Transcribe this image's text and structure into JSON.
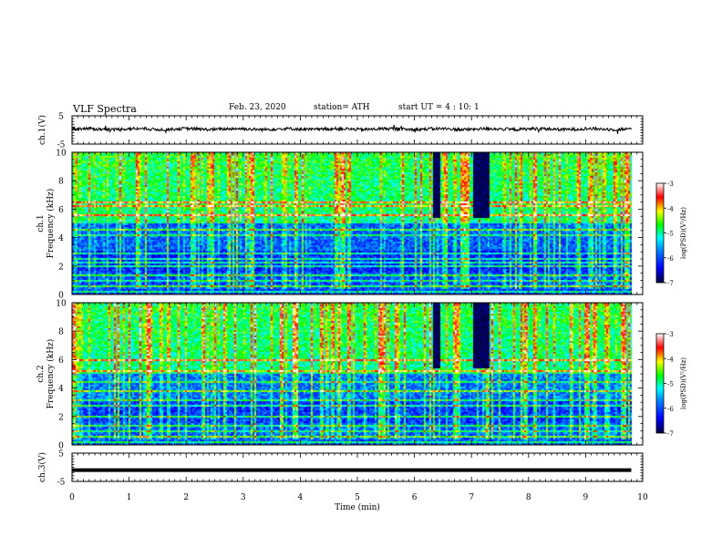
{
  "header": {
    "title": "VLF  Spectra",
    "date": "Feb. 23, 2020",
    "station": "station= ATH",
    "start_ut": "start  UT  =   4  : 10: 1"
  },
  "chart_data": [
    {
      "type": "line",
      "ylabel": "ch.1(V)",
      "ylim": [
        -5,
        5
      ],
      "yticks": [
        "5",
        "-5"
      ],
      "series": [
        {
          "description": "noisy waveform centred slightly above 0 V, ~±1 V fluctuation, with sparse spikes"
        }
      ],
      "x_range_min": [
        0,
        9.8
      ]
    },
    {
      "type": "heatmap",
      "ylabel": "ch.1\nFrequency (kHz)",
      "ylim": [
        0,
        10
      ],
      "yticks": [
        "0",
        "2",
        "4",
        "6",
        "8",
        "10"
      ],
      "colorbar_label": "log(PSD)(V²/Hz)",
      "colorbar_ticks": [
        "-3",
        "-4",
        "-5",
        "-6",
        "-7"
      ],
      "colorbar_range": [
        -7,
        -3
      ],
      "features": {
        "background_level": -5.6,
        "high_freq_level_above_5kHz": -5.0,
        "horizontal_lines_kHz": [
          6.5,
          6.3,
          5.6,
          4.6,
          4.2,
          3.0,
          2.6,
          2.3,
          2.0,
          1.4,
          1.0,
          0.6,
          0.3
        ],
        "data_gap_minutes": [
          6.3,
          6.45,
          7.0,
          7.3
        ],
        "signal_end_min": 9.8
      }
    },
    {
      "type": "heatmap",
      "ylabel": "ch.2\nFrequency (kHz)",
      "ylim": [
        0,
        10
      ],
      "yticks": [
        "0",
        "2",
        "4",
        "6",
        "8",
        "10"
      ],
      "colorbar_label": "log(PSD)(V²/Hz)",
      "colorbar_ticks": [
        "-3",
        "-4",
        "-5",
        "-6",
        "-7"
      ],
      "colorbar_range": [
        -7,
        -3
      ],
      "features": {
        "background_level": -5.5,
        "high_freq_level_above_5kHz": -5.0,
        "horizontal_lines_kHz": [
          6.0,
          5.2,
          4.5,
          3.8,
          3.2,
          2.8,
          2.0,
          1.4,
          1.0,
          0.6,
          0.3
        ],
        "data_gap_minutes": [
          6.3,
          6.45,
          7.0,
          7.3
        ],
        "signal_end_min": 9.8
      }
    },
    {
      "type": "line",
      "ylabel": "ch.3(V)",
      "ylim": [
        -5,
        5
      ],
      "yticks": [
        "5",
        "-5"
      ],
      "series": [
        {
          "description": "flat trace at about -1 V (saturated / constant)"
        }
      ],
      "x_range_min": [
        0,
        9.8
      ]
    }
  ],
  "x_axis": {
    "label": "Time  (min)",
    "range": [
      0,
      10
    ],
    "ticks": [
      "0",
      "1",
      "2",
      "3",
      "4",
      "5",
      "6",
      "7",
      "8",
      "9",
      "10"
    ]
  },
  "colors": {
    "colormap": [
      "#000060",
      "#0000ff",
      "#0080ff",
      "#00ffff",
      "#00ff00",
      "#ffff00",
      "#ff0000",
      "#ffffff"
    ]
  }
}
